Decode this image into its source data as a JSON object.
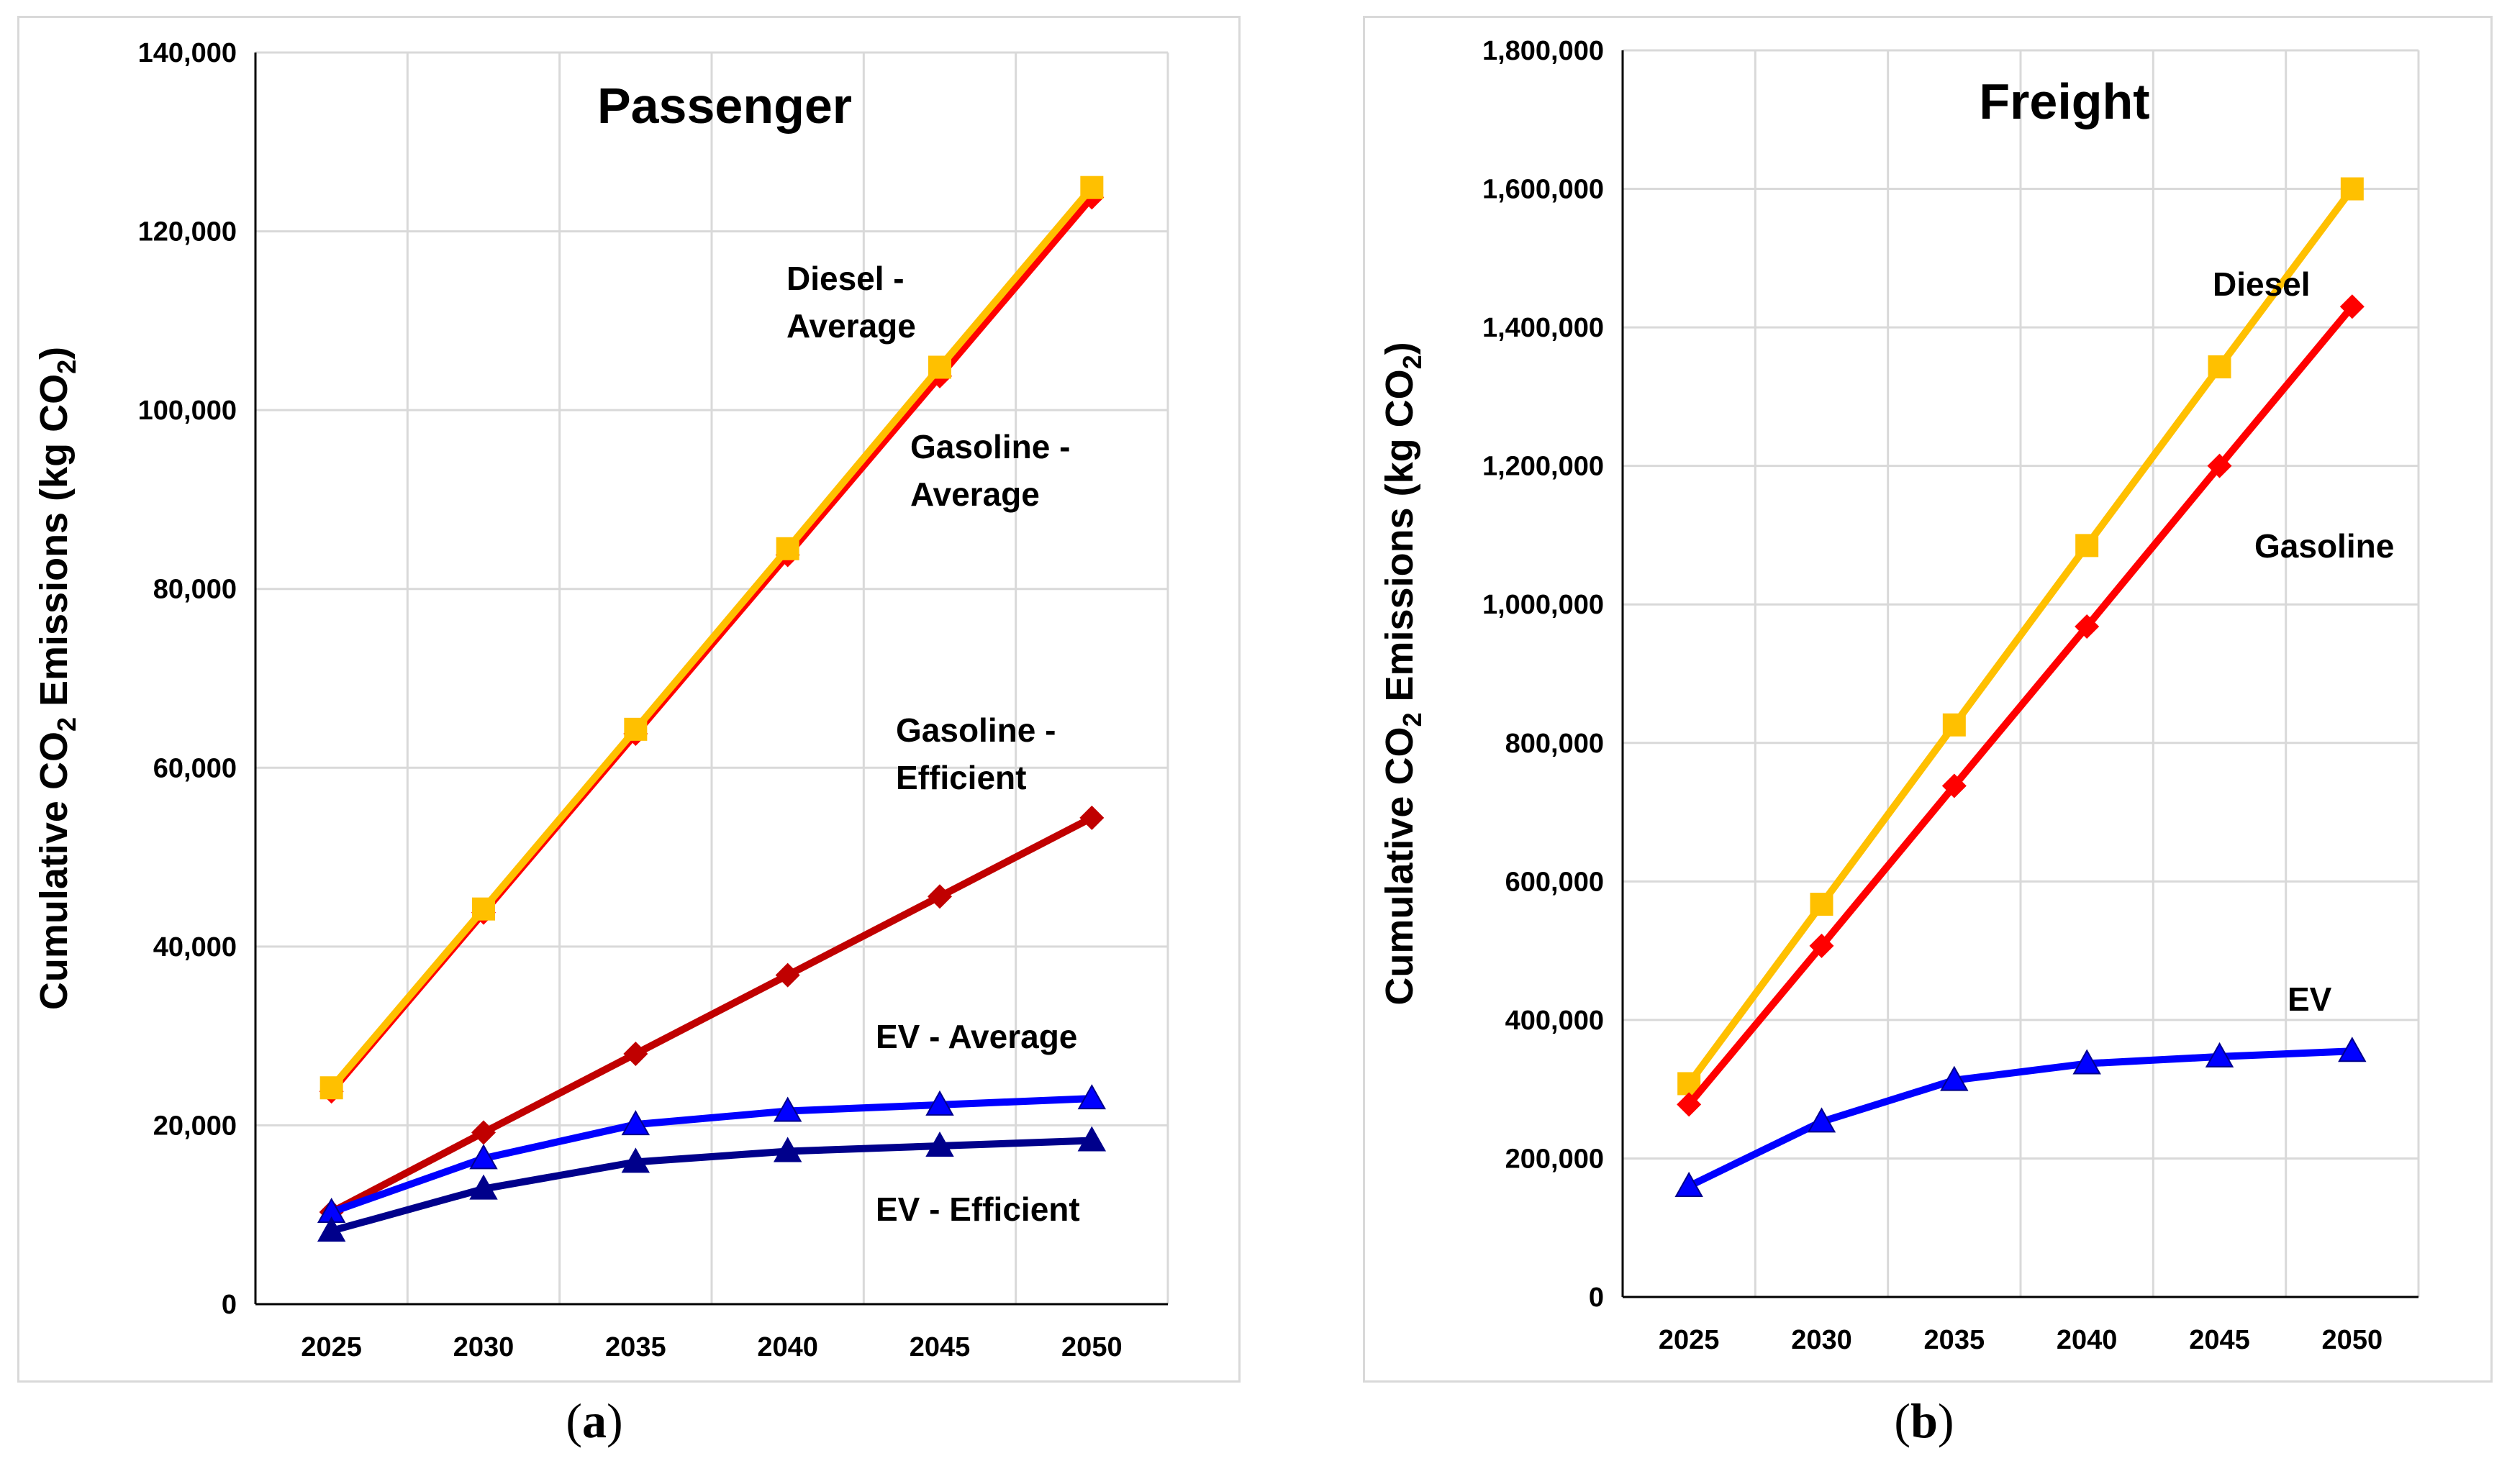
{
  "chart_data": [
    {
      "type": "line",
      "title": "Passenger",
      "caption_letter": "a",
      "xlabel": "",
      "ylabel": "Cumulative CO2 Emissions (kg CO2)",
      "ylabel_parts": {
        "pre": "Cumulative CO",
        "sub1": "2",
        "mid": " Emissions (kg CO",
        "sub2": "2",
        "post": ")"
      },
      "ylim": [
        0,
        140000
      ],
      "yticks": [
        0,
        20000,
        40000,
        60000,
        80000,
        100000,
        120000,
        140000
      ],
      "ytick_labels": [
        "0",
        "20,000",
        "40,000",
        "60,000",
        "80,000",
        "100,000",
        "120,000",
        "140,000"
      ],
      "categories": [
        "2025",
        "2030",
        "2035",
        "2040",
        "2045",
        "2050"
      ],
      "grid": true,
      "series": [
        {
          "name": "Gasoline - Average",
          "label_lines": [
            "Gasoline -",
            "Average"
          ],
          "color": "#ff0000",
          "marker": "diamond",
          "values": [
            23800,
            43800,
            63800,
            83800,
            103800,
            123800
          ]
        },
        {
          "name": "Diesel - Average",
          "label_lines": [
            "Diesel -",
            "Average"
          ],
          "color": "#ffc000",
          "marker": "square",
          "values": [
            24200,
            44200,
            64300,
            84500,
            104800,
            124900
          ]
        },
        {
          "name": "Gasoline - Efficient",
          "label_lines": [
            "Gasoline -",
            "Efficient"
          ],
          "color": "#c00000",
          "marker": "diamond",
          "values": [
            10300,
            19200,
            28000,
            36800,
            45600,
            54400
          ]
        },
        {
          "name": "EV - Average",
          "label_lines": [
            "EV - Average"
          ],
          "color": "#0000ff",
          "marker": "triangle",
          "values": [
            10300,
            16300,
            20100,
            21600,
            22300,
            23000
          ]
        },
        {
          "name": "EV - Efficient",
          "label_lines": [
            "EV - Efficient"
          ],
          "color": "#00008b",
          "marker": "triangle",
          "values": [
            8200,
            12900,
            15900,
            17100,
            17700,
            18300
          ]
        }
      ]
    },
    {
      "type": "line",
      "title": "Freight",
      "caption_letter": "b",
      "xlabel": "",
      "ylabel": "Cumulative CO2 Emissions (kg CO2)",
      "ylabel_parts": {
        "pre": "Cumulative CO",
        "sub1": "2",
        "mid": " Emissions (kg CO",
        "sub2": "2",
        "post": ")"
      },
      "ylim": [
        0,
        1800000
      ],
      "yticks": [
        0,
        200000,
        400000,
        600000,
        800000,
        1000000,
        1200000,
        1400000,
        1600000,
        1800000
      ],
      "ytick_labels": [
        "0",
        "200,000",
        "400,000",
        "600,000",
        "800,000",
        "1,000,000",
        "1,200,000",
        "1,400,000",
        "1,600,000",
        "1,800,000"
      ],
      "categories": [
        "2025",
        "2030",
        "2035",
        "2040",
        "2045",
        "2050"
      ],
      "grid": true,
      "series": [
        {
          "name": "Diesel",
          "label_lines": [
            "Diesel"
          ],
          "color": "#ffc000",
          "marker": "square",
          "values": [
            308000,
            567000,
            826000,
            1085000,
            1343000,
            1600000
          ]
        },
        {
          "name": "Gasoline",
          "label_lines": [
            "Gasoline"
          ],
          "color": "#ff0000",
          "marker": "diamond",
          "values": [
            278000,
            507000,
            738000,
            968000,
            1200000,
            1430000
          ]
        },
        {
          "name": "EV",
          "label_lines": [
            "EV"
          ],
          "color": "#0000ff",
          "marker": "triangle",
          "values": [
            160000,
            253000,
            313000,
            337000,
            347000,
            355000
          ]
        }
      ]
    }
  ]
}
